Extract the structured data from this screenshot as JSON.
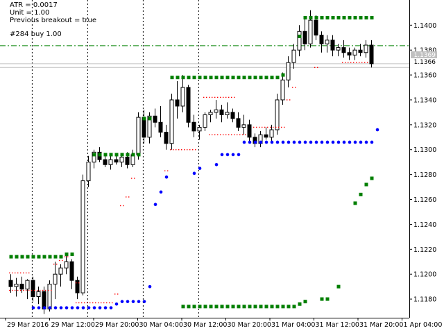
{
  "info": {
    "atr": "ATR = 0.0017",
    "unit": "Unit = 1.00",
    "previous_breakout": "Previous breakout = true",
    "trade": "#284 buy 1.00"
  },
  "price_tags": {
    "bid_label": "1.1369",
    "ask_label": "1.1366"
  },
  "colors": {
    "bull_candle": "#ffffff",
    "bear_candle": "#000000",
    "green_level": "#007f00",
    "blue_level": "#0000ff",
    "red_level": "#ff0000",
    "trade_line": "#008000",
    "price_line": "#c0c0c0",
    "axis": "#000000"
  },
  "chart_data": {
    "type": "candlestick",
    "ylim": [
      1.1165,
      1.1418
    ],
    "y_ticks": [
      "1.1400",
      "1.1380",
      "1.1360",
      "1.1340",
      "1.1320",
      "1.1300",
      "1.1280",
      "1.1260",
      "1.1240",
      "1.1220",
      "1.1200",
      "1.1180"
    ],
    "x_ticks": [
      "29 Mar 2016",
      "29 Mar 12:00",
      "29 Mar 20:00",
      "30 Mar 04:00",
      "30 Mar 12:00",
      "30 Mar 20:00",
      "31 Mar 04:00",
      "31 Mar 12:00",
      "31 Mar 20:00",
      "1 Apr 04:00"
    ],
    "day_separators": [
      2,
      12,
      22,
      32
    ],
    "reference_lines": {
      "trade_entry": 1.13835,
      "bid": 1.1369,
      "ask": 1.1366
    },
    "candles": [
      [
        1.1195,
        1.12,
        1.1185,
        1.119
      ],
      [
        1.119,
        1.1197,
        1.1182,
        1.1192
      ],
      [
        1.1192,
        1.1198,
        1.1185,
        1.1188
      ],
      [
        1.1188,
        1.1196,
        1.118,
        1.1195
      ],
      [
        1.1195,
        1.1198,
        1.1178,
        1.1182
      ],
      [
        1.1182,
        1.119,
        1.1176,
        1.1186
      ],
      [
        1.1186,
        1.119,
        1.1168,
        1.1172
      ],
      [
        1.1172,
        1.1195,
        1.117,
        1.1192
      ],
      [
        1.1192,
        1.121,
        1.118,
        1.12
      ],
      [
        1.12,
        1.1208,
        1.119,
        1.1205
      ],
      [
        1.1205,
        1.1215,
        1.12,
        1.121
      ],
      [
        1.121,
        1.1212,
        1.1188,
        1.1195
      ],
      [
        1.1195,
        1.1198,
        1.118,
        1.1185
      ],
      [
        1.1185,
        1.128,
        1.1183,
        1.1275
      ],
      [
        1.1275,
        1.1295,
        1.127,
        1.129
      ],
      [
        1.129,
        1.13,
        1.1285,
        1.1298
      ],
      [
        1.1298,
        1.1302,
        1.129,
        1.1292
      ],
      [
        1.1292,
        1.1296,
        1.1286,
        1.1288
      ],
      [
        1.1288,
        1.1295,
        1.1284,
        1.1292
      ],
      [
        1.1292,
        1.1297,
        1.1288,
        1.129
      ],
      [
        1.129,
        1.1296,
        1.1286,
        1.1294
      ],
      [
        1.1294,
        1.1298,
        1.1285,
        1.1288
      ],
      [
        1.1288,
        1.13,
        1.1286,
        1.1296
      ],
      [
        1.1296,
        1.133,
        1.1292,
        1.1326
      ],
      [
        1.1326,
        1.1332,
        1.1305,
        1.131
      ],
      [
        1.131,
        1.133,
        1.1305,
        1.1327
      ],
      [
        1.1327,
        1.1333,
        1.1318,
        1.1322
      ],
      [
        1.1322,
        1.1335,
        1.131,
        1.1314
      ],
      [
        1.1314,
        1.132,
        1.13,
        1.1305
      ],
      [
        1.1305,
        1.1345,
        1.13,
        1.134
      ],
      [
        1.134,
        1.1355,
        1.1325,
        1.1335
      ],
      [
        1.1335,
        1.136,
        1.133,
        1.135
      ],
      [
        1.135,
        1.1352,
        1.1318,
        1.1322
      ],
      [
        1.1322,
        1.1328,
        1.131,
        1.1315
      ],
      [
        1.1315,
        1.132,
        1.1308,
        1.1318
      ],
      [
        1.1318,
        1.133,
        1.1315,
        1.1328
      ],
      [
        1.1328,
        1.1332,
        1.1322,
        1.133
      ],
      [
        1.133,
        1.134,
        1.1325,
        1.1332
      ],
      [
        1.1332,
        1.1336,
        1.1322,
        1.1328
      ],
      [
        1.1328,
        1.1338,
        1.1325,
        1.133
      ],
      [
        1.133,
        1.1333,
        1.1322,
        1.1325
      ],
      [
        1.1325,
        1.133,
        1.1315,
        1.1318
      ],
      [
        1.1318,
        1.1328,
        1.1312,
        1.132
      ],
      [
        1.132,
        1.1324,
        1.1305,
        1.131
      ],
      [
        1.131,
        1.1313,
        1.1302,
        1.1305
      ],
      [
        1.1305,
        1.1315,
        1.1302,
        1.1312
      ],
      [
        1.1312,
        1.1318,
        1.1308,
        1.131
      ],
      [
        1.131,
        1.132,
        1.1305,
        1.1316
      ],
      [
        1.1316,
        1.1345,
        1.1312,
        1.134
      ],
      [
        1.134,
        1.1362,
        1.1336,
        1.1356
      ],
      [
        1.1356,
        1.1375,
        1.135,
        1.137
      ],
      [
        1.137,
        1.1385,
        1.1365,
        1.138
      ],
      [
        1.138,
        1.14,
        1.1375,
        1.1395
      ],
      [
        1.1395,
        1.1405,
        1.138,
        1.1385
      ],
      [
        1.1385,
        1.1412,
        1.1382,
        1.1404
      ],
      [
        1.1404,
        1.1408,
        1.1388,
        1.1392
      ],
      [
        1.1392,
        1.1395,
        1.1378,
        1.1385
      ],
      [
        1.1385,
        1.1392,
        1.1378,
        1.1388
      ],
      [
        1.1388,
        1.1392,
        1.1375,
        1.138
      ],
      [
        1.138,
        1.1385,
        1.1375,
        1.1382
      ],
      [
        1.1382,
        1.1388,
        1.1374,
        1.1378
      ],
      [
        1.1378,
        1.1382,
        1.1372,
        1.1376
      ],
      [
        1.1376,
        1.1382,
        1.1372,
        1.138
      ],
      [
        1.138,
        1.1385,
        1.1375,
        1.1378
      ],
      [
        1.1378,
        1.1388,
        1.1374,
        1.1384
      ],
      [
        1.1384,
        1.1388,
        1.1366,
        1.1369
      ]
    ],
    "levels": [
      {
        "name": "breakout-high",
        "type": "square",
        "color": "#007f00",
        "points": [
          [
            0,
            1.1214
          ],
          [
            9,
            1.1214
          ],
          [
            10,
            1.1216
          ],
          [
            11,
            1.1216
          ],
          [
            15,
            1.1296
          ],
          [
            23,
            1.1296
          ],
          [
            24,
            1.1325
          ],
          [
            25,
            1.1325
          ],
          [
            29,
            1.1358
          ],
          [
            48,
            1.1358
          ],
          [
            49,
            1.136
          ],
          [
            52,
            1.1391
          ],
          [
            53,
            1.1406
          ],
          [
            65,
            1.1406
          ]
        ]
      },
      {
        "name": "breakout-low",
        "type": "square",
        "color": "#007f00",
        "points": [
          [
            31,
            1.1174
          ],
          [
            51,
            1.1174
          ],
          [
            52,
            1.1176
          ],
          [
            53,
            1.1178
          ],
          [
            56,
            1.118
          ],
          [
            57,
            1.118
          ],
          [
            59,
            1.119
          ],
          [
            62,
            1.1257
          ],
          [
            63,
            1.1264
          ],
          [
            64,
            1.1272
          ],
          [
            65,
            1.1277
          ]
        ]
      },
      {
        "name": "stop-low",
        "type": "dot",
        "color": "#0000ff",
        "points": [
          [
            4,
            1.1173
          ],
          [
            18,
            1.1173
          ],
          [
            19,
            1.1176
          ],
          [
            20,
            1.1178
          ],
          [
            24,
            1.1178
          ],
          [
            25,
            1.119
          ],
          [
            26,
            1.1256
          ],
          [
            27,
            1.1266
          ],
          [
            28,
            1.1278
          ],
          [
            33,
            1.1281
          ],
          [
            34,
            1.1285
          ],
          [
            37,
            1.1288
          ],
          [
            38,
            1.1296
          ],
          [
            41,
            1.1296
          ],
          [
            42,
            1.1306
          ],
          [
            65,
            1.1306
          ],
          [
            66,
            1.1316
          ]
        ]
      },
      {
        "name": "stop-high",
        "type": "dot-small",
        "color": "#ff0000",
        "points": [
          [
            0,
            1.1201
          ],
          [
            3,
            1.1201
          ],
          [
            0,
            1.1187
          ],
          [
            7,
            1.1187
          ],
          [
            8,
            1.1208
          ],
          [
            9,
            1.1211
          ],
          [
            10,
            1.1214
          ],
          [
            12,
            1.1193
          ],
          [
            12,
            1.1177
          ],
          [
            18,
            1.1177
          ],
          [
            19,
            1.1184
          ],
          [
            20,
            1.1255
          ],
          [
            21,
            1.1262
          ],
          [
            22,
            1.1277
          ],
          [
            28,
            1.1283
          ],
          [
            29,
            1.13
          ],
          [
            33,
            1.13
          ],
          [
            35,
            1.1342
          ],
          [
            40,
            1.1342
          ],
          [
            36,
            1.1312
          ],
          [
            42,
            1.1312
          ],
          [
            44,
            1.1318
          ],
          [
            49,
            1.1318
          ],
          [
            50,
            1.134
          ],
          [
            51,
            1.135
          ],
          [
            55,
            1.1366
          ],
          [
            60,
            1.137
          ],
          [
            64,
            1.137
          ]
        ]
      }
    ]
  }
}
